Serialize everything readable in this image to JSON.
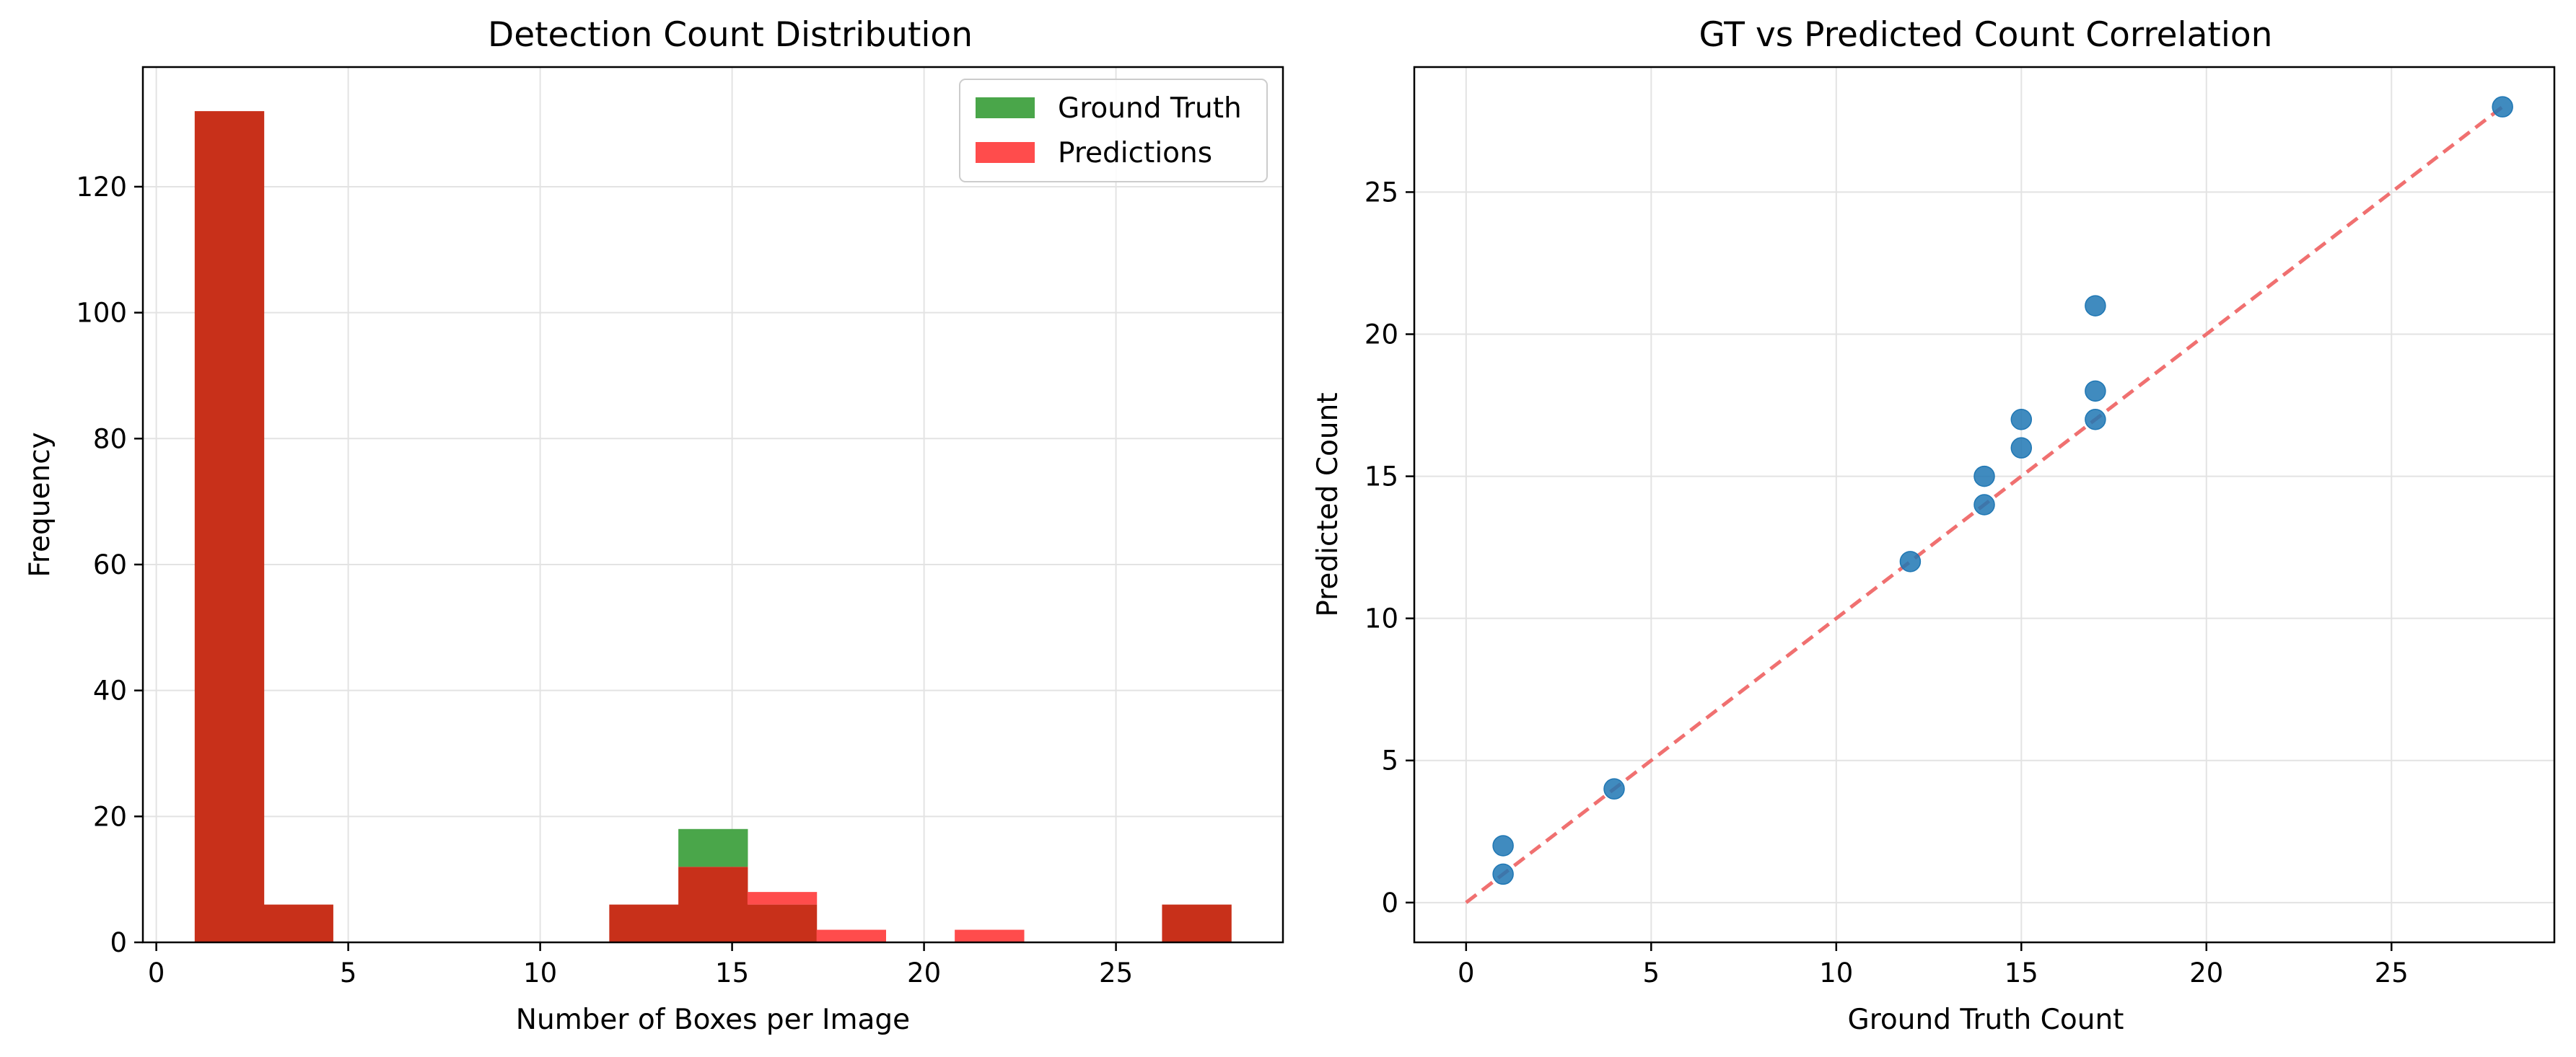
{
  "chart_data": [
    {
      "type": "bar",
      "subtype": "overlaid-histogram",
      "title": "Detection Count Distribution",
      "xlabel": "Number of Boxes per Image",
      "ylabel": "Frequency",
      "xlim": [
        -0.35,
        29.35
      ],
      "ylim": [
        0,
        139
      ],
      "xticks": [
        0,
        5,
        10,
        15,
        20,
        25
      ],
      "yticks": [
        0,
        20,
        40,
        60,
        80,
        100,
        120
      ],
      "grid": true,
      "legend_position": "upper right",
      "bin_edges": [
        1.0,
        2.8,
        4.6,
        6.4,
        8.2,
        10.0,
        11.8,
        13.6,
        15.4,
        17.2,
        19.0,
        20.8,
        22.6,
        24.4,
        26.2,
        28.0
      ],
      "series": [
        {
          "name": "Ground Truth",
          "color": "#2ca02c",
          "alpha": 0.85,
          "values": [
            132,
            6,
            0,
            0,
            0,
            0,
            6,
            18,
            6,
            0,
            0,
            0,
            0,
            0,
            6
          ]
        },
        {
          "name": "Predictions",
          "color": "#ff3b3b",
          "alpha": 0.9,
          "values": [
            132,
            6,
            0,
            0,
            0,
            0,
            6,
            12,
            8,
            2,
            0,
            2,
            0,
            0,
            6
          ]
        }
      ],
      "overlap_color": "#c8301a"
    },
    {
      "type": "scatter",
      "title": "GT vs Predicted Count Correlation",
      "xlabel": "Ground Truth Count",
      "ylabel": "Predicted Count",
      "xlim": [
        -1.4,
        29.4
      ],
      "ylim": [
        -1.4,
        29.4
      ],
      "xticks": [
        0,
        5,
        10,
        15,
        20,
        25
      ],
      "yticks": [
        0,
        5,
        10,
        15,
        20,
        25
      ],
      "grid": true,
      "point_color": "#1f77b4",
      "points": [
        {
          "x": 1,
          "y": 1
        },
        {
          "x": 1,
          "y": 2
        },
        {
          "x": 4,
          "y": 4
        },
        {
          "x": 12,
          "y": 12
        },
        {
          "x": 14,
          "y": 14
        },
        {
          "x": 14,
          "y": 15
        },
        {
          "x": 15,
          "y": 16
        },
        {
          "x": 15,
          "y": 17
        },
        {
          "x": 17,
          "y": 17
        },
        {
          "x": 17,
          "y": 18
        },
        {
          "x": 17,
          "y": 21
        },
        {
          "x": 28,
          "y": 28
        }
      ],
      "reference_line": {
        "from": [
          0,
          0
        ],
        "to": [
          28,
          28
        ],
        "color": "#f08080",
        "style": "dashed"
      }
    }
  ]
}
